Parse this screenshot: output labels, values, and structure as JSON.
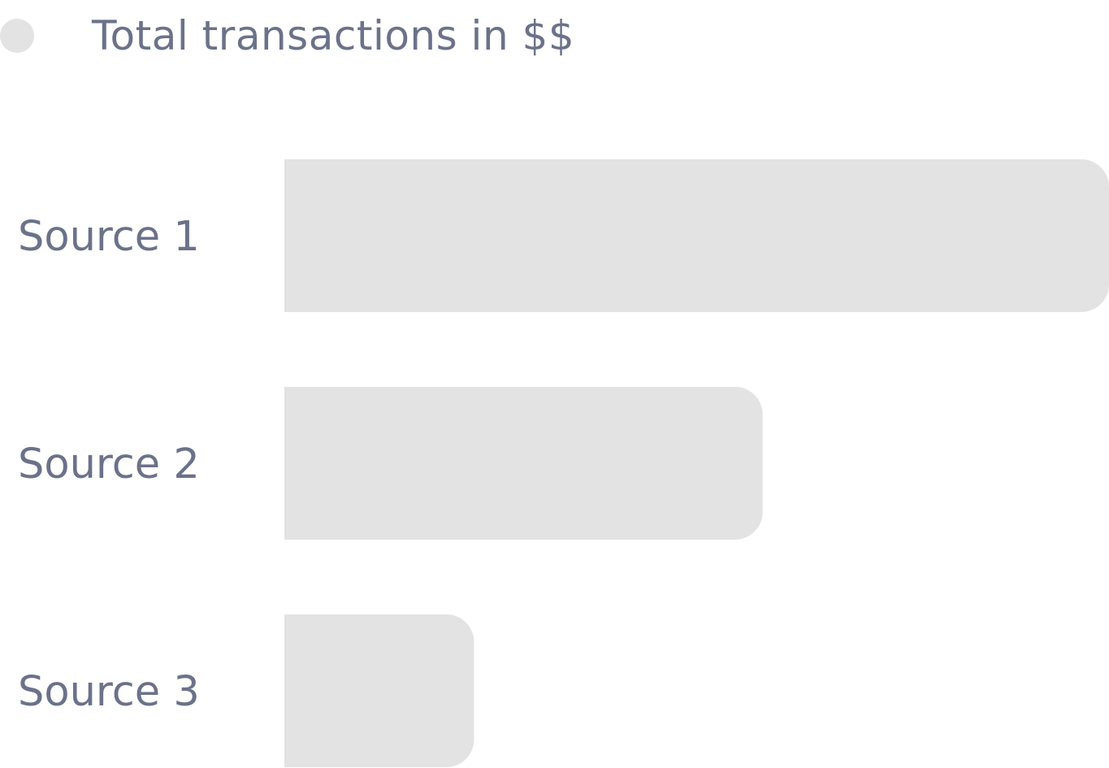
{
  "chart_data": {
    "type": "bar",
    "orientation": "horizontal",
    "categories": [
      "Source 1",
      "Source 2",
      "Source 3"
    ],
    "series": [
      {
        "name": "Total transactions in $$",
        "values": [
          100,
          58,
          23
        ],
        "color": "#e3e3e3"
      }
    ],
    "xlim": [
      0,
      100
    ],
    "grid": false,
    "legend_position": "top-left"
  },
  "colors": {
    "text": "#6b7289",
    "bar": "#e3e3e3"
  }
}
